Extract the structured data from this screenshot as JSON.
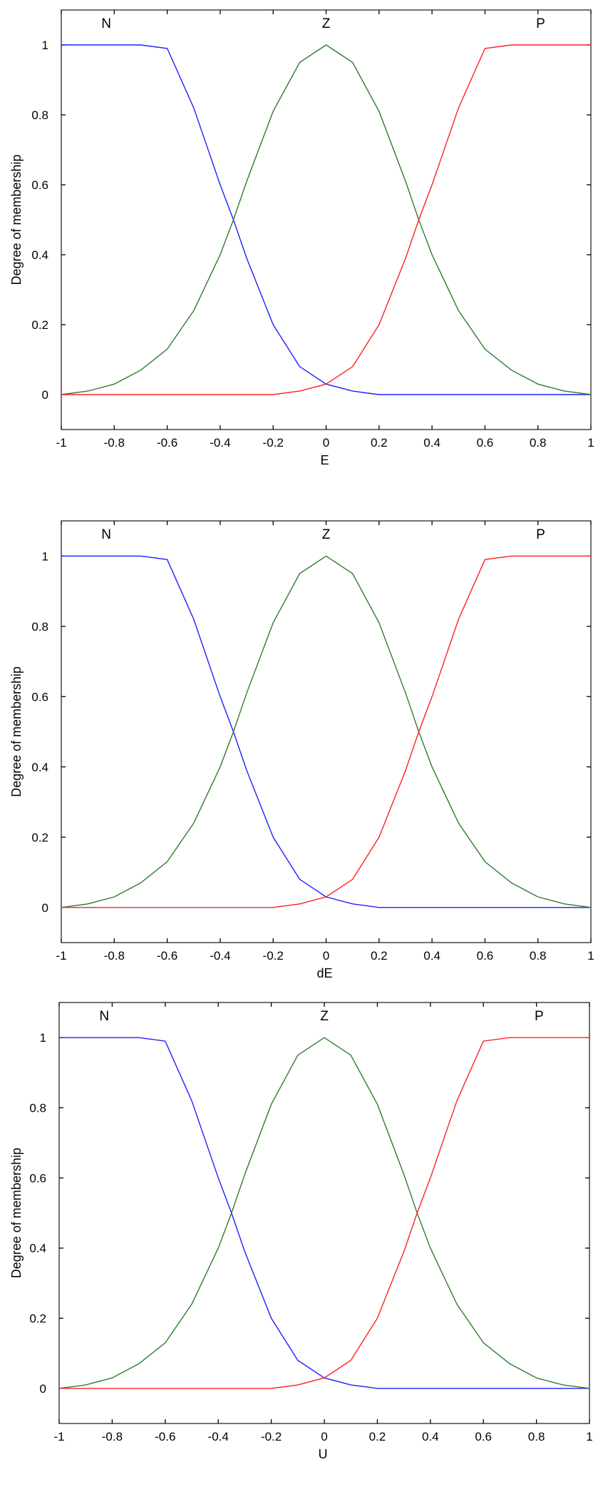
{
  "colors": {
    "N": "#1f1fff",
    "Z": "#2e7d2e",
    "P": "#ff2020",
    "axis": "#000000"
  },
  "chart_data": [
    {
      "type": "line",
      "xlabel": "E",
      "ylabel": "Degree of membership",
      "xlim": [
        -1,
        1
      ],
      "ylim": [
        -0.1,
        1.1
      ],
      "xticks": [
        "-1",
        "-0.8",
        "-0.6",
        "-0.4",
        "-0.2",
        "0",
        "0.2",
        "0.4",
        "0.6",
        "0.8",
        "1"
      ],
      "yticks": [
        "0",
        "0.2",
        "0.4",
        "0.6",
        "0.8",
        "1"
      ],
      "grid": false,
      "x": [
        -1,
        -0.9,
        -0.8,
        -0.7,
        -0.6,
        -0.5,
        -0.4,
        -0.35,
        -0.3,
        -0.2,
        -0.1,
        0,
        0.1,
        0.2,
        0.3,
        0.35,
        0.4,
        0.5,
        0.6,
        0.7,
        0.8,
        0.9,
        1
      ],
      "series": [
        {
          "name": "N",
          "values": [
            1,
            1,
            1,
            1,
            0.99,
            0.82,
            0.6,
            0.5,
            0.39,
            0.2,
            0.08,
            0.03,
            0.01,
            0,
            0,
            0,
            0,
            0,
            0,
            0,
            0,
            0,
            0
          ]
        },
        {
          "name": "Z",
          "values": [
            0,
            0.01,
            0.03,
            0.07,
            0.13,
            0.24,
            0.4,
            0.5,
            0.61,
            0.81,
            0.95,
            1,
            0.95,
            0.81,
            0.61,
            0.5,
            0.4,
            0.24,
            0.13,
            0.07,
            0.03,
            0.01,
            0
          ]
        },
        {
          "name": "P",
          "values": [
            0,
            0,
            0,
            0,
            0,
            0,
            0,
            0,
            0,
            0,
            0.01,
            0.03,
            0.08,
            0.2,
            0.39,
            0.5,
            0.6,
            0.82,
            0.99,
            1,
            1,
            1,
            1
          ]
        }
      ]
    },
    {
      "type": "line",
      "xlabel": "dE",
      "ylabel": "Degree of membership",
      "xlim": [
        -1,
        1
      ],
      "ylim": [
        -0.1,
        1.1
      ],
      "xticks": [
        "-1",
        "-0.8",
        "-0.6",
        "-0.4",
        "-0.2",
        "0",
        "0.2",
        "0.4",
        "0.6",
        "0.8",
        "1"
      ],
      "yticks": [
        "0",
        "0.2",
        "0.4",
        "0.6",
        "0.8",
        "1"
      ],
      "grid": false,
      "x": [
        -1,
        -0.9,
        -0.8,
        -0.7,
        -0.6,
        -0.5,
        -0.4,
        -0.35,
        -0.3,
        -0.2,
        -0.1,
        0,
        0.1,
        0.2,
        0.3,
        0.35,
        0.4,
        0.5,
        0.6,
        0.7,
        0.8,
        0.9,
        1
      ],
      "series": [
        {
          "name": "N",
          "values": [
            1,
            1,
            1,
            1,
            0.99,
            0.82,
            0.6,
            0.5,
            0.39,
            0.2,
            0.08,
            0.03,
            0.01,
            0,
            0,
            0,
            0,
            0,
            0,
            0,
            0,
            0,
            0
          ]
        },
        {
          "name": "Z",
          "values": [
            0,
            0.01,
            0.03,
            0.07,
            0.13,
            0.24,
            0.4,
            0.5,
            0.61,
            0.81,
            0.95,
            1,
            0.95,
            0.81,
            0.61,
            0.5,
            0.4,
            0.24,
            0.13,
            0.07,
            0.03,
            0.01,
            0
          ]
        },
        {
          "name": "P",
          "values": [
            0,
            0,
            0,
            0,
            0,
            0,
            0,
            0,
            0,
            0,
            0.01,
            0.03,
            0.08,
            0.2,
            0.39,
            0.5,
            0.6,
            0.82,
            0.99,
            1,
            1,
            1,
            1
          ]
        }
      ]
    },
    {
      "type": "line",
      "xlabel": "U",
      "ylabel": "Degree of membership",
      "xlim": [
        -1,
        1
      ],
      "ylim": [
        -0.1,
        1.1
      ],
      "xticks": [
        "-1",
        "-0.8",
        "-0.6",
        "-0.4",
        "-0.2",
        "0",
        "0.2",
        "0.4",
        "0.6",
        "0.8",
        "1"
      ],
      "yticks": [
        "0",
        "0.2",
        "0.4",
        "0.6",
        "0.8",
        "1"
      ],
      "grid": false,
      "x": [
        -1,
        -0.9,
        -0.8,
        -0.7,
        -0.6,
        -0.5,
        -0.4,
        -0.35,
        -0.3,
        -0.2,
        -0.1,
        0,
        0.1,
        0.2,
        0.3,
        0.35,
        0.4,
        0.5,
        0.6,
        0.7,
        0.8,
        0.9,
        1
      ],
      "series": [
        {
          "name": "N",
          "values": [
            1,
            1,
            1,
            1,
            0.99,
            0.82,
            0.6,
            0.5,
            0.39,
            0.2,
            0.08,
            0.03,
            0.01,
            0,
            0,
            0,
            0,
            0,
            0,
            0,
            0,
            0,
            0
          ]
        },
        {
          "name": "Z",
          "values": [
            0,
            0.01,
            0.03,
            0.07,
            0.13,
            0.24,
            0.4,
            0.5,
            0.61,
            0.81,
            0.95,
            1,
            0.95,
            0.81,
            0.61,
            0.5,
            0.4,
            0.24,
            0.13,
            0.07,
            0.03,
            0.01,
            0
          ]
        },
        {
          "name": "P",
          "values": [
            0,
            0,
            0,
            0,
            0,
            0,
            0,
            0,
            0,
            0,
            0.01,
            0.03,
            0.08,
            0.2,
            0.39,
            0.5,
            0.6,
            0.82,
            0.99,
            1,
            1,
            1,
            1
          ]
        }
      ]
    }
  ]
}
